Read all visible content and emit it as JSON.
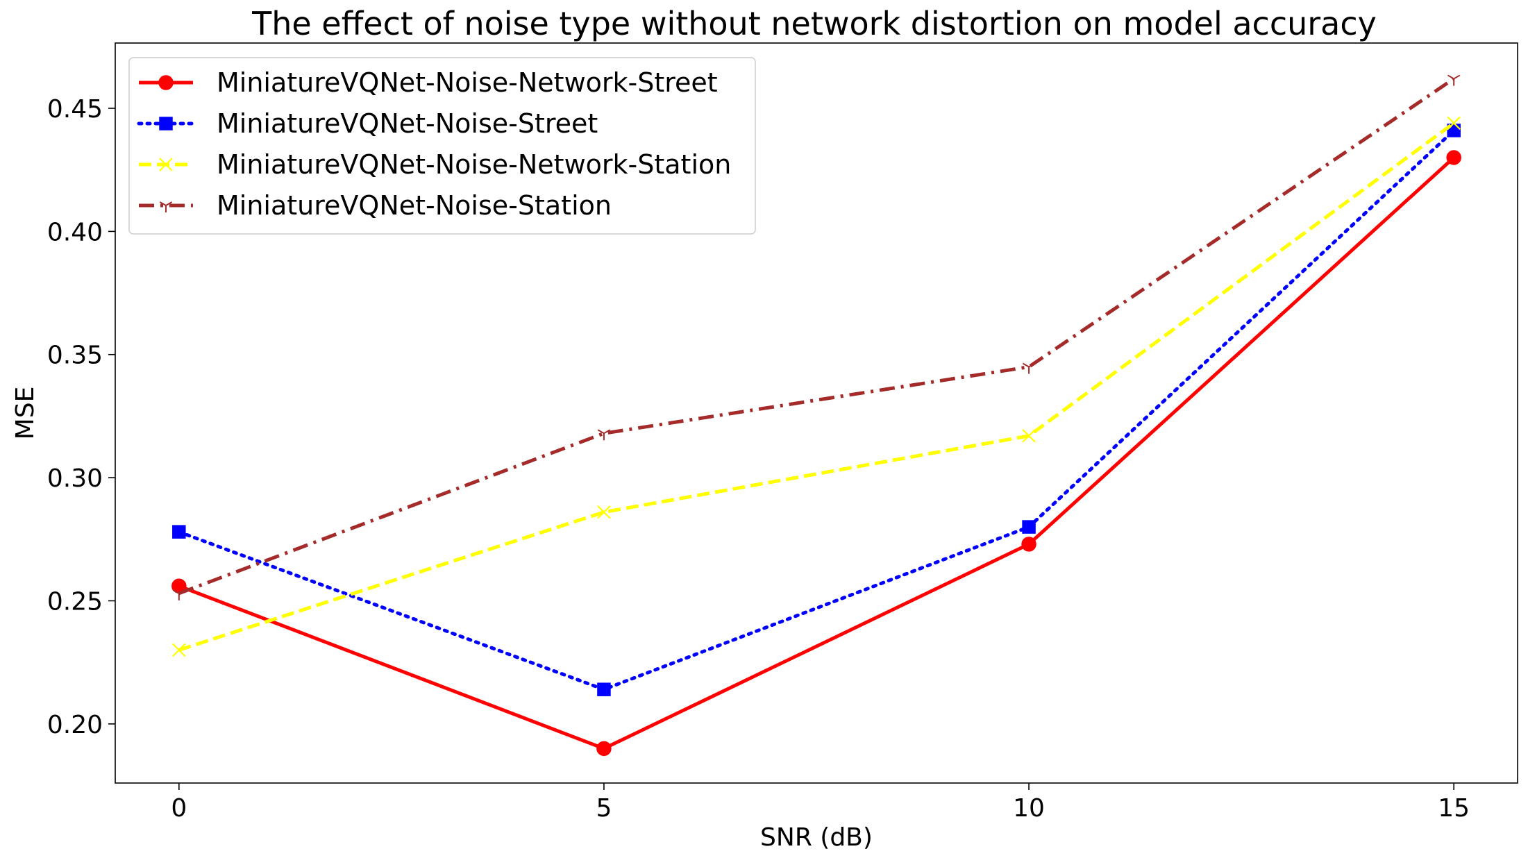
{
  "chart_data": {
    "type": "line",
    "title": "The effect of noise type without network distortion on model accuracy",
    "xlabel": "SNR (dB)",
    "ylabel": "MSE",
    "x": [
      0,
      5,
      10,
      15
    ],
    "xlim": [
      -0.75,
      15.75
    ],
    "ylim": [
      0.176,
      0.4765
    ],
    "xticks": [
      0,
      5,
      10,
      15
    ],
    "xtick_labels": [
      "0",
      "5",
      "10",
      "15"
    ],
    "yticks": [
      0.2,
      0.25,
      0.3,
      0.35,
      0.4,
      0.45
    ],
    "ytick_labels": [
      "0.20",
      "0.25",
      "0.30",
      "0.35",
      "0.40",
      "0.45"
    ],
    "grid": false,
    "legend_position": "top-left",
    "series": [
      {
        "name": "MiniatureVQNet-Noise-Network-Street",
        "color": "#ff0000",
        "linestyle": "solid",
        "marker": "circle",
        "values": [
          0.256,
          0.19,
          0.273,
          0.43
        ]
      },
      {
        "name": "MiniatureVQNet-Noise-Street",
        "color": "#0000ff",
        "linestyle": "dotted",
        "marker": "square",
        "values": [
          0.278,
          0.214,
          0.28,
          0.441
        ]
      },
      {
        "name": "MiniatureVQNet-Noise-Network-Station",
        "color": "#ffff00",
        "linestyle": "dashed",
        "marker": "x",
        "values": [
          0.23,
          0.286,
          0.317,
          0.444
        ]
      },
      {
        "name": "MiniatureVQNet-Noise-Station",
        "color": "#a52a2a",
        "linestyle": "dashdot",
        "marker": "tri_up",
        "values": [
          0.253,
          0.318,
          0.345,
          0.462
        ]
      }
    ]
  }
}
